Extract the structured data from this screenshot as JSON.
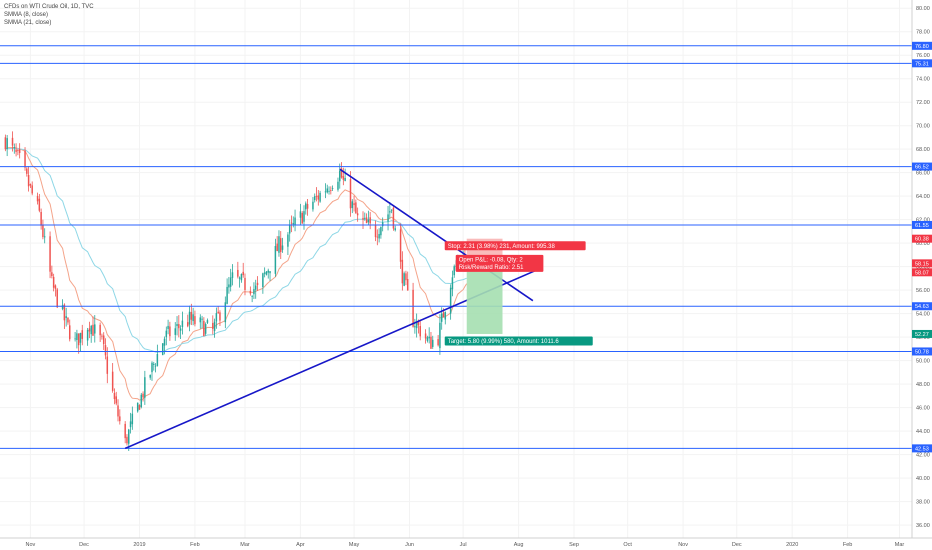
{
  "legend": {
    "title": "CFDs on WTI Crude Oil, 1D, TVC",
    "indicator1": "SMMA (8, close)",
    "indicator2": "SMMA (21, close)"
  },
  "colors": {
    "bull": "#26a69a",
    "bear": "#ef5350",
    "level_line": "#2962ff",
    "trendline": "#1717c8",
    "smma_fast": "#f4a48a",
    "smma_slow": "#8ed7e6",
    "stop_zone": "#f8b4b4",
    "target_zone": "#a5dfb0",
    "stop_label_bg": "#f23645",
    "target_label_bg": "#089981"
  },
  "chart_data": {
    "type": "candlestick",
    "y_axis": {
      "ylim": [
        34.9,
        80.7
      ],
      "ticks": [
        "36.00",
        "38.00",
        "40.00",
        "42.00",
        "44.00",
        "46.00",
        "48.00",
        "50.00",
        "52.00",
        "54.00",
        "56.00",
        "58.00",
        "60.00",
        "62.00",
        "64.00",
        "66.00",
        "68.00",
        "70.00",
        "72.00",
        "74.00",
        "76.00",
        "78.00",
        "80.00"
      ]
    },
    "x_axis": {
      "ticks": [
        "Nov",
        "Dec",
        "2019",
        "Feb",
        "Mar",
        "Apr",
        "May",
        "Jun",
        "Jul",
        "Aug",
        "Sep",
        "Oct",
        "Nov",
        "Dec",
        "2020",
        "Feb",
        "Mar"
      ]
    },
    "price_anchors": [
      {
        "date": "2018-10-18",
        "close": 68.8
      },
      {
        "date": "2018-10-26",
        "close": 67.0
      },
      {
        "date": "2018-11-06",
        "close": 62.5
      },
      {
        "date": "2018-11-13",
        "close": 56.5
      },
      {
        "date": "2018-11-20",
        "close": 53.5
      },
      {
        "date": "2018-11-26",
        "close": 51.5
      },
      {
        "date": "2018-12-04",
        "close": 53.2
      },
      {
        "date": "2018-12-11",
        "close": 51.5
      },
      {
        "date": "2018-12-18",
        "close": 46.5
      },
      {
        "date": "2018-12-24",
        "close": 43.0
      },
      {
        "date": "2019-01-04",
        "close": 47.8
      },
      {
        "date": "2019-01-15",
        "close": 52.0
      },
      {
        "date": "2019-01-29",
        "close": 53.5
      },
      {
        "date": "2019-02-11",
        "close": 52.5
      },
      {
        "date": "2019-02-22",
        "close": 57.0
      },
      {
        "date": "2019-03-08",
        "close": 56.0
      },
      {
        "date": "2019-03-20",
        "close": 59.8
      },
      {
        "date": "2019-04-05",
        "close": 63.0
      },
      {
        "date": "2019-04-23",
        "close": 66.0
      },
      {
        "date": "2019-05-03",
        "close": 62.0
      },
      {
        "date": "2019-05-13",
        "close": 61.0
      },
      {
        "date": "2019-05-22",
        "close": 63.0
      },
      {
        "date": "2019-05-27",
        "close": 58.0
      },
      {
        "date": "2019-06-03",
        "close": 53.5
      },
      {
        "date": "2019-06-12",
        "close": 51.5
      },
      {
        "date": "2019-06-17",
        "close": 52.0
      },
      {
        "date": "2019-06-25",
        "close": 57.5
      },
      {
        "date": "2019-07-01",
        "close": 59.0
      },
      {
        "date": "2019-07-03",
        "close": 58.1
      }
    ],
    "horizontal_levels": [
      {
        "price": 76.8,
        "label": "76.80"
      },
      {
        "price": 75.31,
        "label": "75.31"
      },
      {
        "price": 66.52,
        "label": "66.52"
      },
      {
        "price": 61.55,
        "label": "61.55"
      },
      {
        "price": 54.63,
        "label": "54.63"
      },
      {
        "price": 50.78,
        "label": "50.78"
      },
      {
        "price": 42.53,
        "label": "42.53"
      }
    ],
    "trendlines": [
      {
        "from": {
          "date": "2018-12-24",
          "price": 42.53
        },
        "to": {
          "date": "2019-08-14",
          "price": 57.9
        }
      },
      {
        "from": {
          "date": "2019-04-23",
          "price": 66.3
        },
        "to": {
          "date": "2019-08-09",
          "price": 55.1
        }
      }
    ],
    "position": {
      "start": "2019-07-03",
      "end": "2019-07-23",
      "entry": 58.07,
      "stop": 60.38,
      "target": 52.27,
      "entry_label": "58.07",
      "stop_price_label": "60.38",
      "target_price_label": "52.27",
      "current_price_label": "58.15",
      "stop_text": "Stop: 2.31 (3.98%) 231, Amount: 995.38",
      "target_text": "Target: 5.80 (9.99%) 580, Amount: 1011.6",
      "pnl_text": "Open P&L: -0.08, Qty: 2",
      "rr_text": "Risk/Reward Ratio: 2.51"
    }
  }
}
